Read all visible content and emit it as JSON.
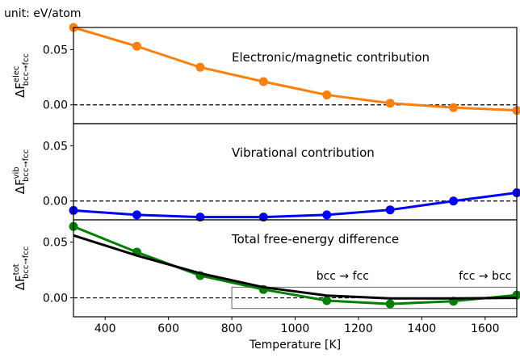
{
  "unit_note": "unit: eV/atom",
  "chart_data": [
    {
      "type": "line",
      "annotation": "Electronic/magnetic contribution",
      "ylabel": {
        "prefix": "ΔF",
        "sup": "elec",
        "sub": "bcc→fcc"
      },
      "xlim": [
        300,
        1700
      ],
      "ylim": [
        -0.017,
        0.07
      ],
      "yticks": [
        "0.05",
        "0.00"
      ],
      "ytick_values": [
        0.05,
        0.0
      ],
      "zero_line": "dashed",
      "series": [
        {
          "color": "#ff7f0e",
          "x": [
            300,
            500,
            700,
            900,
            1100,
            1300,
            1500,
            1700
          ],
          "y": [
            0.07,
            0.053,
            0.034,
            0.021,
            0.009,
            0.0015,
            -0.0025,
            -0.005
          ]
        }
      ]
    },
    {
      "type": "line",
      "annotation": "Vibrational contribution",
      "ylabel": {
        "prefix": "ΔF",
        "sup": "vib",
        "sub": "bcc→fcc"
      },
      "xlim": [
        300,
        1700
      ],
      "ylim": [
        -0.017,
        0.07
      ],
      "yticks": [
        "0.05",
        "0.00"
      ],
      "ytick_values": [
        0.05,
        0.0
      ],
      "zero_line": "dashed",
      "series": [
        {
          "color": "#0000ff",
          "x": [
            300,
            500,
            700,
            900,
            1100,
            1300,
            1500,
            1700
          ],
          "y": [
            -0.0085,
            -0.0125,
            -0.0145,
            -0.0145,
            -0.0125,
            -0.008,
            0.0,
            0.0075
          ]
        }
      ]
    },
    {
      "type": "line",
      "annotation": "Total free-energy difference",
      "ylabel": {
        "prefix": "ΔF",
        "sup": "tot",
        "sub": "bcc→fcc"
      },
      "xlabel": "Temperature [K]",
      "xlim": [
        300,
        1700
      ],
      "ylim": [
        -0.017,
        0.07
      ],
      "xticks": [
        "400",
        "600",
        "800",
        "1000",
        "1200",
        "1400",
        "1600"
      ],
      "xtick_values": [
        400,
        600,
        800,
        1000,
        1200,
        1400,
        1600
      ],
      "yticks": [
        "0.05",
        "0.00"
      ],
      "ytick_values": [
        0.05,
        0.0
      ],
      "zero_line": "dashed",
      "series": [
        {
          "color": "#008000",
          "markers": true,
          "x": [
            300,
            500,
            700,
            900,
            1100,
            1300,
            1500,
            1700
          ],
          "y": [
            0.064,
            0.041,
            0.02,
            0.0075,
            -0.0025,
            -0.0055,
            -0.003,
            0.0025
          ]
        },
        {
          "color": "#000000",
          "markers": false,
          "x": [
            300,
            500,
            700,
            900,
            1100,
            1300,
            1500,
            1700
          ],
          "y": [
            0.056,
            0.038,
            0.022,
            0.0095,
            0.002,
            -0.0005,
            -0.0005,
            0.0
          ]
        }
      ],
      "inset_box": {
        "x": [
          800,
          1700
        ],
        "y": [
          -0.0095,
          0.0095
        ]
      },
      "labels": [
        {
          "text": "bcc → fcc",
          "x": 1150,
          "y": 0.015
        },
        {
          "text": "fcc → bcc",
          "x": 1600,
          "y": 0.015
        }
      ]
    }
  ]
}
